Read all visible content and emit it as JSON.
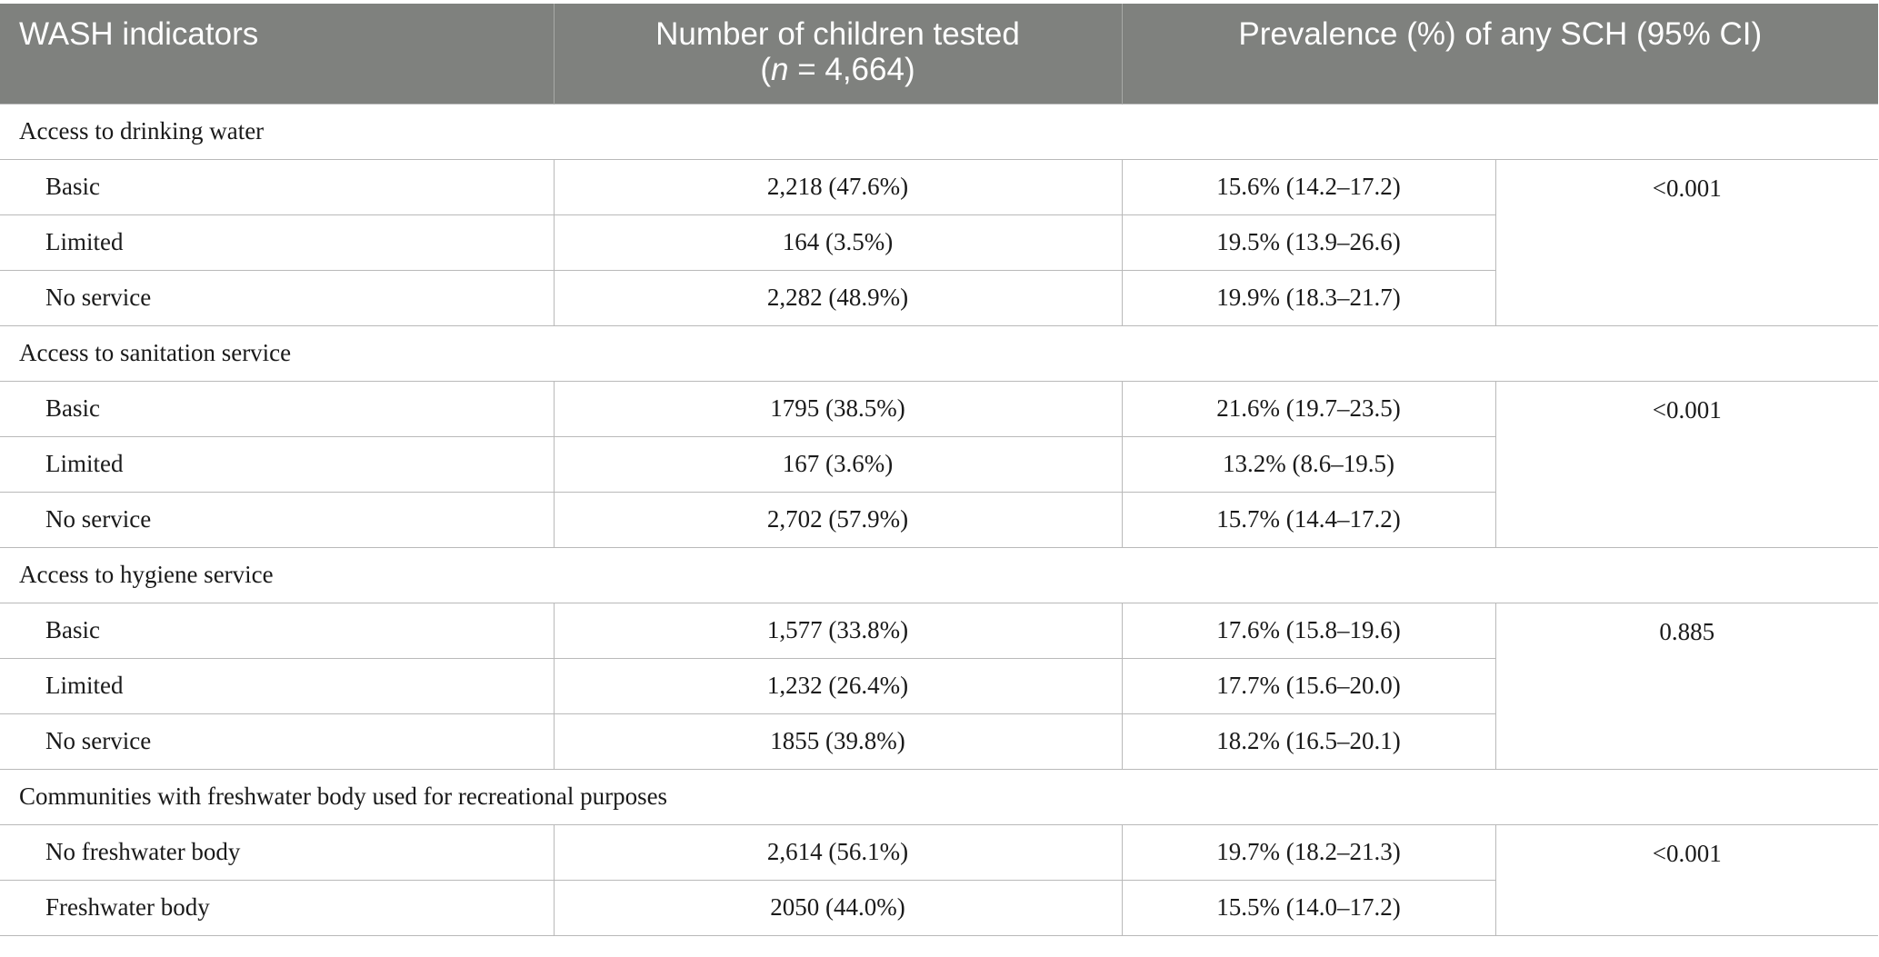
{
  "header": {
    "col1": "WASH indicators",
    "col2_line1": "Number of children tested",
    "col2_n_open": "(",
    "col2_n_ital": "n",
    "col2_n_rest": " = 4,664)",
    "col3": "Prevalence (%) of any SCH (95% CI)"
  },
  "groups": {
    "water": {
      "title": "Access to drinking water",
      "p_value": "<0.001",
      "rows": [
        {
          "label": "Basic",
          "tested": "2,218 (47.6%)",
          "prevalence": "15.6% (14.2–17.2)"
        },
        {
          "label": "Limited",
          "tested": "164 (3.5%)",
          "prevalence": "19.5% (13.9–26.6)"
        },
        {
          "label": "No service",
          "tested": "2,282 (48.9%)",
          "prevalence": "19.9% (18.3–21.7)"
        }
      ]
    },
    "sanitation": {
      "title": "Access to sanitation service",
      "p_value": "<0.001",
      "rows": [
        {
          "label": "Basic",
          "tested": "1795 (38.5%)",
          "prevalence": "21.6% (19.7–23.5)"
        },
        {
          "label": "Limited",
          "tested": "167 (3.6%)",
          "prevalence": "13.2% (8.6–19.5)"
        },
        {
          "label": "No service",
          "tested": "2,702 (57.9%)",
          "prevalence": "15.7% (14.4–17.2)"
        }
      ]
    },
    "hygiene": {
      "title": "Access to hygiene service",
      "p_value": "0.885",
      "rows": [
        {
          "label": "Basic",
          "tested": "1,577 (33.8%)",
          "prevalence": "17.6% (15.8–19.6)"
        },
        {
          "label": "Limited",
          "tested": "1,232 (26.4%)",
          "prevalence": "17.7% (15.6–20.0)"
        },
        {
          "label": "No service",
          "tested": "1855 (39.8%)",
          "prevalence": "18.2% (16.5–20.1)"
        }
      ]
    },
    "freshwater": {
      "title": "Communities with freshwater body used for recreational purposes",
      "p_value": "<0.001",
      "rows": [
        {
          "label": "No freshwater body",
          "tested": "2,614 (56.1%)",
          "prevalence": "19.7% (18.2–21.3)"
        },
        {
          "label": "Freshwater body",
          "tested": "2050 (44.0%)",
          "prevalence": "15.5% (14.0–17.2)"
        }
      ]
    }
  },
  "colors": {
    "header_bg": "#7f817e",
    "header_text": "#ffffff",
    "grid_line": "#b9b9b9"
  }
}
